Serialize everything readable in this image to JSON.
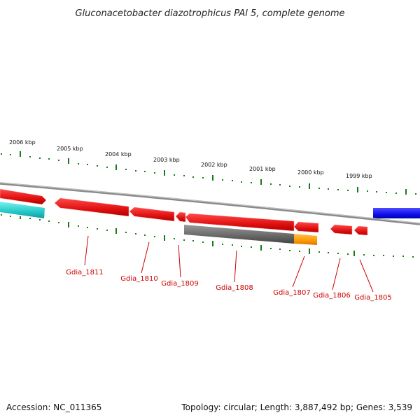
{
  "title": "Gluconacetobacter diazotrophicus PAl 5, complete genome",
  "accession_text": "Accession: NC_011365",
  "summary_text": "Topology: circular; Length: 3,887,492 bp; Genes: 3,539",
  "scale_labels": [
    "2006 kbp",
    "2005 kbp",
    "2004 kbp",
    "2003 kbp",
    "2002 kbp",
    "2001 kbp",
    "2000 kbp",
    "1999 kbp"
  ],
  "genes": [
    {
      "id": "Gdia_1811",
      "label": "Gdia_1811"
    },
    {
      "id": "Gdia_1810",
      "label": "Gdia_1810"
    },
    {
      "id": "Gdia_1809",
      "label": "Gdia_1809"
    },
    {
      "id": "Gdia_1808",
      "label": "Gdia_1808"
    },
    {
      "id": "Gdia_1807",
      "label": "Gdia_1807"
    },
    {
      "id": "Gdia_1806",
      "label": "Gdia_1806"
    },
    {
      "id": "Gdia_1805",
      "label": "Gdia_1805"
    }
  ],
  "colors": {
    "backbone": "#8a8a8a",
    "gene_red": "#ee1111",
    "gene_grey": "#6e6e6e",
    "gene_orange": "#ff9900",
    "gene_blue": "#1111ee",
    "gene_cyan": "#22c8c8",
    "tick_green": "#1a7a1a",
    "label_red": "#cc0000"
  }
}
